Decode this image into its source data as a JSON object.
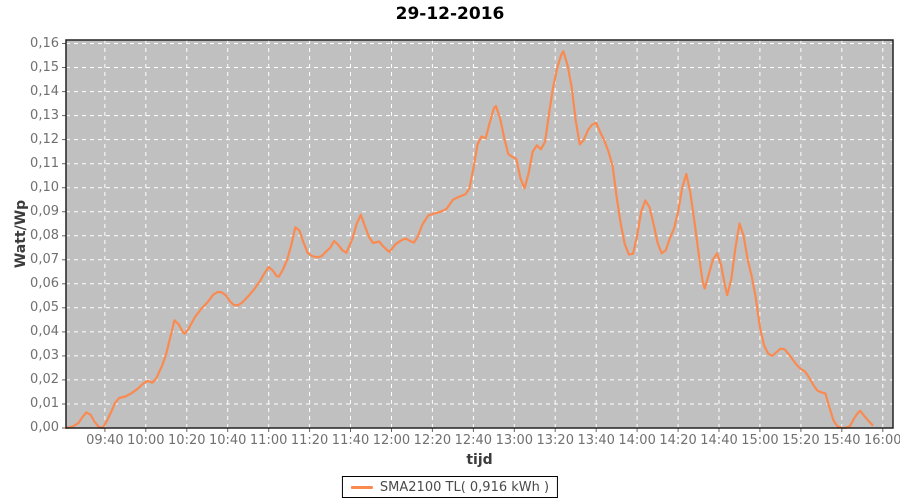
{
  "title": "29-12-2016",
  "colors": {
    "plot_bg": "#c0c0c0",
    "grid": "#ffffff",
    "plot_border": "#222222",
    "tick_mark": "#666666",
    "tick_label": "#707070",
    "axis_label": "#3c3c3c",
    "title": "#000000",
    "line": "#fa8a50"
  },
  "y_axis": {
    "label": "Watt/Wp",
    "min": 0,
    "max": 0.16,
    "step": 0.01,
    "decimal_separator": ","
  },
  "x_axis": {
    "label": "tijd",
    "ticks": [
      "09:40",
      "10:00",
      "10:20",
      "10:40",
      "11:00",
      "11:20",
      "11:40",
      "12:00",
      "12:20",
      "12:40",
      "13:00",
      "13:20",
      "13:40",
      "14:00",
      "14:20",
      "14:40",
      "15:00",
      "15:20",
      "15:40",
      "16:00"
    ]
  },
  "legend": {
    "label": "SMA2100 TL( 0,916 kWh )",
    "line_color": "#fa8a50"
  },
  "chart_data": {
    "type": "line",
    "title": "29-12-2016",
    "xlabel": "tijd",
    "ylabel": "Watt/Wp",
    "xlim": [
      "09:21",
      "16:05"
    ],
    "ylim": [
      0,
      0.16
    ],
    "grid": true,
    "legend_position": "bottom",
    "x_ticks": [
      "09:40",
      "10:00",
      "10:20",
      "10:40",
      "11:00",
      "11:20",
      "11:40",
      "12:00",
      "12:20",
      "12:40",
      "13:00",
      "13:20",
      "13:40",
      "14:00",
      "14:20",
      "14:40",
      "15:00",
      "15:20",
      "15:40",
      "16:00"
    ],
    "y_tick_step": 0.01,
    "series": [
      {
        "name": "SMA2100 TL( 0,916 kWh )",
        "color": "#fa8a50",
        "points": [
          [
            "09:21",
            0.0
          ],
          [
            "09:24",
            0.0005
          ],
          [
            "09:27",
            0.002
          ],
          [
            "09:29",
            0.0045
          ],
          [
            "09:31",
            0.0065
          ],
          [
            "09:33",
            0.0055
          ],
          [
            "09:35",
            0.0025
          ],
          [
            "09:37",
            0.0005
          ],
          [
            "09:39",
            0.0
          ],
          [
            "09:41",
            0.003
          ],
          [
            "09:43",
            0.0065
          ],
          [
            "09:45",
            0.0105
          ],
          [
            "09:47",
            0.0125
          ],
          [
            "09:50",
            0.0131
          ],
          [
            "09:53",
            0.0145
          ],
          [
            "09:56",
            0.0163
          ],
          [
            "09:59",
            0.0187
          ],
          [
            "10:01",
            0.0196
          ],
          [
            "10:03",
            0.0188
          ],
          [
            "10:05",
            0.0205
          ],
          [
            "10:08",
            0.026
          ],
          [
            "10:10",
            0.031
          ],
          [
            "10:12",
            0.038
          ],
          [
            "10:14",
            0.0448
          ],
          [
            "10:16",
            0.0432
          ],
          [
            "10:18",
            0.04
          ],
          [
            "10:19",
            0.0392
          ],
          [
            "10:21",
            0.0415
          ],
          [
            "10:24",
            0.0462
          ],
          [
            "10:27",
            0.0495
          ],
          [
            "10:30",
            0.0522
          ],
          [
            "10:33",
            0.0555
          ],
          [
            "10:35",
            0.0566
          ],
          [
            "10:37",
            0.0565
          ],
          [
            "10:39",
            0.0552
          ],
          [
            "10:41",
            0.0528
          ],
          [
            "10:43",
            0.0512
          ],
          [
            "10:45",
            0.051
          ],
          [
            "10:47",
            0.0522
          ],
          [
            "10:50",
            0.0548
          ],
          [
            "10:53",
            0.0578
          ],
          [
            "10:56",
            0.0615
          ],
          [
            "10:58",
            0.0645
          ],
          [
            "11:00",
            0.067
          ],
          [
            "11:02",
            0.0655
          ],
          [
            "11:04",
            0.0632
          ],
          [
            "11:05",
            0.063
          ],
          [
            "11:07",
            0.066
          ],
          [
            "11:09",
            0.07
          ],
          [
            "11:11",
            0.076
          ],
          [
            "11:13",
            0.0835
          ],
          [
            "11:15",
            0.0822
          ],
          [
            "11:17",
            0.0772
          ],
          [
            "11:19",
            0.073
          ],
          [
            "11:21",
            0.0716
          ],
          [
            "11:24",
            0.071
          ],
          [
            "11:26",
            0.0716
          ],
          [
            "11:28",
            0.0734
          ],
          [
            "11:30",
            0.075
          ],
          [
            "11:32",
            0.0778
          ],
          [
            "11:34",
            0.0762
          ],
          [
            "11:36",
            0.074
          ],
          [
            "11:38",
            0.0729
          ],
          [
            "11:41",
            0.079
          ],
          [
            "11:43",
            0.085
          ],
          [
            "11:45",
            0.0887
          ],
          [
            "11:47",
            0.084
          ],
          [
            "11:49",
            0.0795
          ],
          [
            "11:51",
            0.077
          ],
          [
            "11:54",
            0.0776
          ],
          [
            "11:56",
            0.0755
          ],
          [
            "11:59",
            0.0732
          ],
          [
            "12:02",
            0.0765
          ],
          [
            "12:05",
            0.0782
          ],
          [
            "12:07",
            0.0789
          ],
          [
            "12:09",
            0.0778
          ],
          [
            "12:11",
            0.0772
          ],
          [
            "12:13",
            0.08
          ],
          [
            "12:15",
            0.0845
          ],
          [
            "12:18",
            0.0885
          ],
          [
            "12:21",
            0.0893
          ],
          [
            "12:24",
            0.09
          ],
          [
            "12:27",
            0.0912
          ],
          [
            "12:30",
            0.095
          ],
          [
            "12:33",
            0.0962
          ],
          [
            "12:36",
            0.0972
          ],
          [
            "12:38",
            0.0995
          ],
          [
            "12:40",
            0.108
          ],
          [
            "12:42",
            0.118
          ],
          [
            "12:44",
            0.1213
          ],
          [
            "12:46",
            0.1205
          ],
          [
            "12:48",
            0.127
          ],
          [
            "12:50",
            0.133
          ],
          [
            "12:51",
            0.134
          ],
          [
            "12:53",
            0.129
          ],
          [
            "12:55",
            0.121
          ],
          [
            "12:57",
            0.114
          ],
          [
            "12:59",
            0.1128
          ],
          [
            "13:01",
            0.112
          ],
          [
            "13:03",
            0.104
          ],
          [
            "13:05",
            0.0997
          ],
          [
            "13:07",
            0.106
          ],
          [
            "13:09",
            0.115
          ],
          [
            "13:11",
            0.1176
          ],
          [
            "13:13",
            0.116
          ],
          [
            "13:15",
            0.119
          ],
          [
            "13:17",
            0.131
          ],
          [
            "13:19",
            0.142
          ],
          [
            "13:21",
            0.15
          ],
          [
            "13:23",
            0.1555
          ],
          [
            "13:24",
            0.1567
          ],
          [
            "13:26",
            0.151
          ],
          [
            "13:28",
            0.142
          ],
          [
            "13:30",
            0.128
          ],
          [
            "13:32",
            0.118
          ],
          [
            "13:34",
            0.12
          ],
          [
            "13:36",
            0.124
          ],
          [
            "13:38",
            0.1262
          ],
          [
            "13:40",
            0.127
          ],
          [
            "13:42",
            0.123
          ],
          [
            "13:44",
            0.1195
          ],
          [
            "13:46",
            0.115
          ],
          [
            "13:48",
            0.109
          ],
          [
            "13:50",
            0.096
          ],
          [
            "13:52",
            0.085
          ],
          [
            "13:54",
            0.0765
          ],
          [
            "13:56",
            0.0722
          ],
          [
            "13:58",
            0.0725
          ],
          [
            "14:00",
            0.08
          ],
          [
            "14:02",
            0.09
          ],
          [
            "14:04",
            0.0947
          ],
          [
            "14:06",
            0.092
          ],
          [
            "14:08",
            0.085
          ],
          [
            "14:10",
            0.077
          ],
          [
            "14:12",
            0.0727
          ],
          [
            "14:14",
            0.074
          ],
          [
            "14:16",
            0.079
          ],
          [
            "14:18",
            0.083
          ],
          [
            "14:20",
            0.09
          ],
          [
            "14:22",
            0.1
          ],
          [
            "14:24",
            0.1057
          ],
          [
            "14:26",
            0.098
          ],
          [
            "14:28",
            0.086
          ],
          [
            "14:30",
            0.073
          ],
          [
            "14:32",
            0.061
          ],
          [
            "14:33",
            0.058
          ],
          [
            "14:35",
            0.064
          ],
          [
            "14:37",
            0.07
          ],
          [
            "14:39",
            0.0727
          ],
          [
            "14:41",
            0.068
          ],
          [
            "14:43",
            0.059
          ],
          [
            "14:44",
            0.0553
          ],
          [
            "14:46",
            0.062
          ],
          [
            "14:48",
            0.075
          ],
          [
            "14:50",
            0.0851
          ],
          [
            "14:52",
            0.08
          ],
          [
            "14:54",
            0.07
          ],
          [
            "14:56",
            0.063
          ],
          [
            "14:58",
            0.054
          ],
          [
            "15:00",
            0.042
          ],
          [
            "15:02",
            0.0345
          ],
          [
            "15:04",
            0.031
          ],
          [
            "15:06",
            0.03
          ],
          [
            "15:08",
            0.0315
          ],
          [
            "15:10",
            0.033
          ],
          [
            "15:12",
            0.0328
          ],
          [
            "15:14",
            0.0308
          ],
          [
            "15:16",
            0.0285
          ],
          [
            "15:18",
            0.0262
          ],
          [
            "15:20",
            0.0245
          ],
          [
            "15:22",
            0.0235
          ],
          [
            "15:24",
            0.021
          ],
          [
            "15:26",
            0.018
          ],
          [
            "15:28",
            0.0156
          ],
          [
            "15:30",
            0.0148
          ],
          [
            "15:32",
            0.0144
          ],
          [
            "15:34",
            0.0085
          ],
          [
            "15:36",
            0.003
          ],
          [
            "15:38",
            0.0006
          ],
          [
            "15:40",
            0.0001
          ],
          [
            "15:42",
            0.0001
          ],
          [
            "15:44",
            0.0008
          ],
          [
            "15:46",
            0.004
          ],
          [
            "15:48",
            0.0065
          ],
          [
            "15:49",
            0.0071
          ],
          [
            "15:51",
            0.005
          ],
          [
            "15:53",
            0.003
          ],
          [
            "15:55",
            0.0012
          ]
        ]
      }
    ]
  }
}
